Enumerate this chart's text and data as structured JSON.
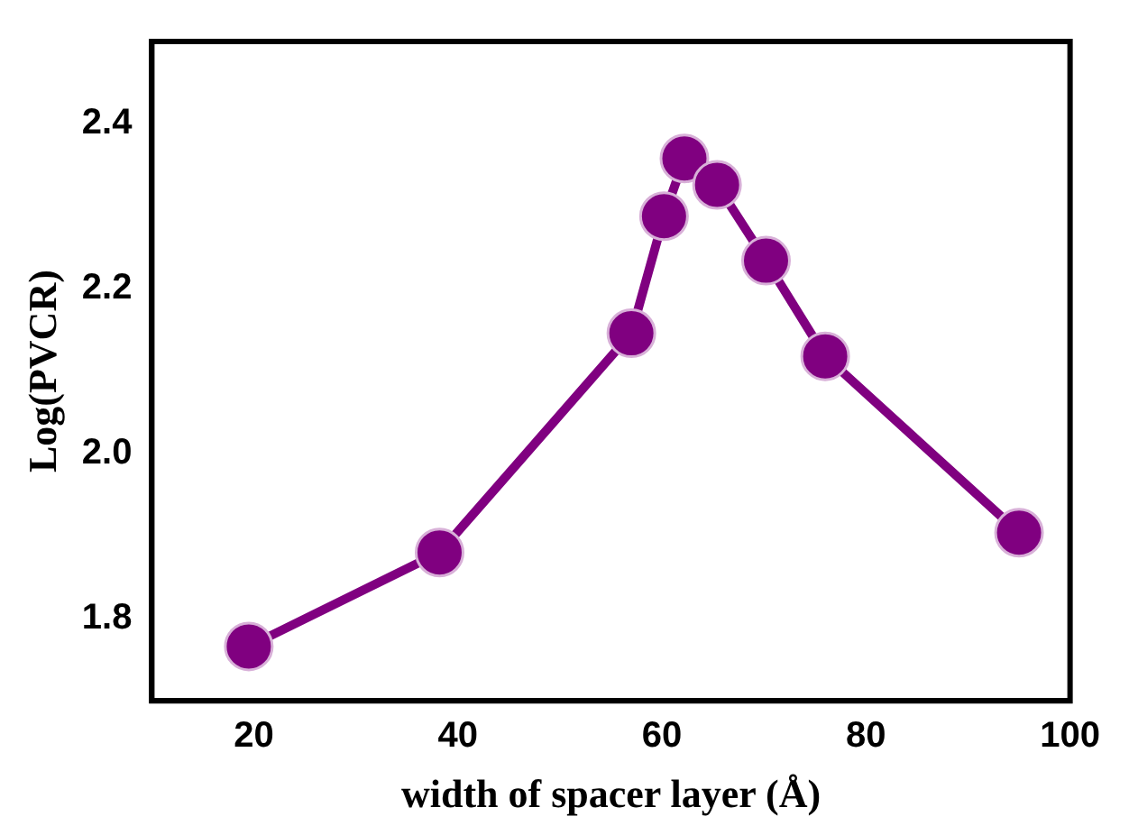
{
  "chart_data": {
    "type": "line",
    "xlabel": "width of spacer layer (Å)",
    "ylabel": "Log(PVCR)",
    "x": [
      19.5,
      38.2,
      57,
      60.2,
      62.2,
      65.4,
      70.2,
      76,
      95
    ],
    "series": [
      {
        "color": "#800080",
        "values": [
          1.766,
          1.88,
          2.146,
          2.288,
          2.358,
          2.326,
          2.234,
          2.118,
          1.904
        ]
      }
    ],
    "xlim": [
      10,
      100
    ],
    "xticks": [
      20,
      40,
      60,
      80,
      100
    ],
    "ylim": [
      1.7,
      2.5
    ],
    "yticks": [
      1.8,
      {
        "value": 2,
        "label": "2.0"
      },
      2.2,
      2.4
    ],
    "grid": false,
    "legend": false,
    "marker": "circle",
    "line_style": "solid"
  }
}
